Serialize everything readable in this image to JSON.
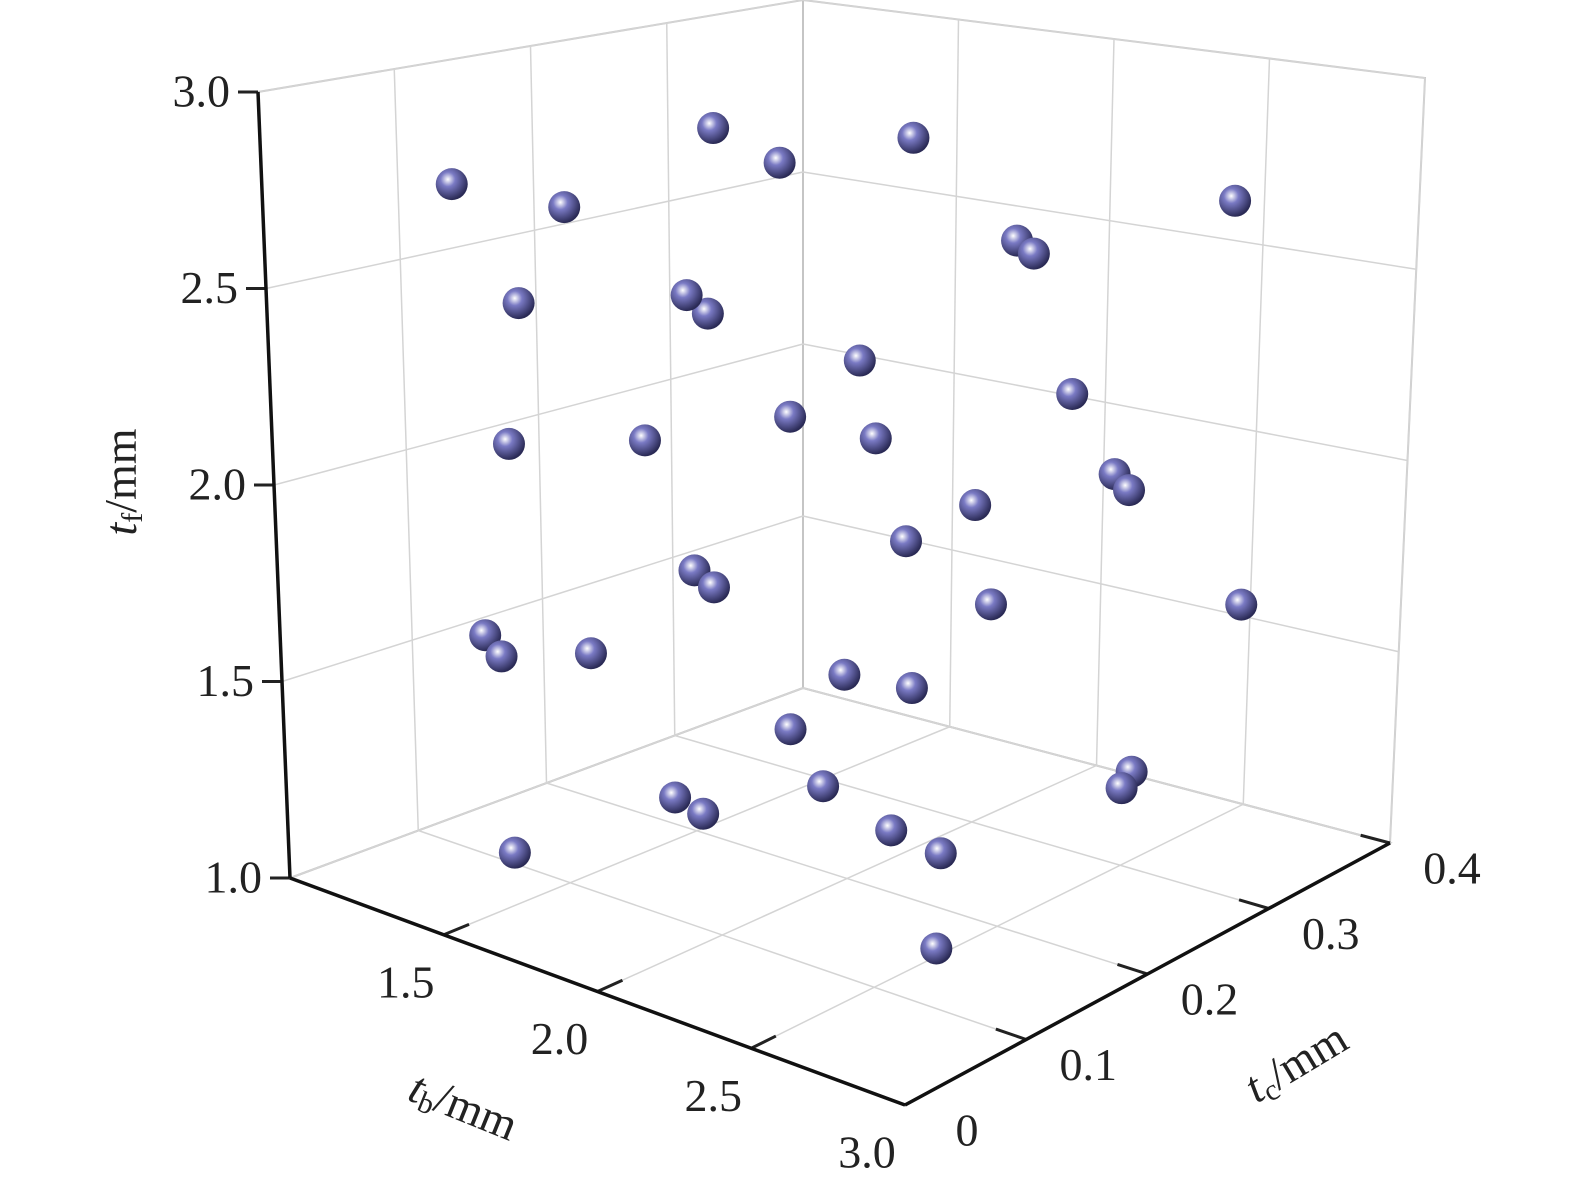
{
  "chart_data": {
    "type": "scatter3d",
    "xlabel": {
      "symbol": "t",
      "subscript": "b",
      "unit": "/mm"
    },
    "ylabel": {
      "symbol": "t",
      "subscript": "c",
      "unit": "/mm"
    },
    "zlabel": {
      "symbol": "t",
      "subscript": "f",
      "unit": "/mm"
    },
    "xlim": [
      1,
      3
    ],
    "xticks": [
      1.5,
      {
        "value": 2,
        "label": "2.0"
      },
      2.5,
      {
        "value": 3,
        "label": "3.0"
      }
    ],
    "ylim": [
      0,
      0.4
    ],
    "yticks": [
      0,
      0.1,
      0.2,
      0.3,
      0.4
    ],
    "zlim": [
      1,
      3
    ],
    "zticks": [
      {
        "value": 1,
        "label": "1.0"
      },
      1.5,
      {
        "value": 2,
        "label": "2.0"
      },
      2.5,
      {
        "value": 3,
        "label": "3.0"
      }
    ],
    "grid": true,
    "color": "#7a7ac4",
    "x": [
      1.38,
      1.52,
      1.78,
      1.57,
      2.2,
      2.61,
      2.12,
      2.38,
      1.55,
      1.9,
      1.58,
      1.39,
      2.24,
      2.1,
      1.88,
      1.33,
      1.97,
      2.45,
      1.56,
      2.9,
      2.61,
      1.5,
      1.98,
      2.26,
      2.47,
      1.45,
      1.29,
      1.37,
      1.57,
      2.21,
      1.39,
      2.53,
      2.7,
      1.92,
      1.64,
      1.94,
      2.35,
      2.31,
      1.53,
      2.9
    ],
    "y": [
      0.05,
      0.1,
      0.15,
      0.25,
      0.2,
      0.35,
      0.3,
      0.25,
      0.2,
      0.1,
      0.05,
      0.3,
      0.15,
      0.35,
      0.25,
      0.1,
      0.05,
      0.3,
      0.35,
      0.2,
      0.15,
      0.2,
      0.1,
      0.25,
      0.4,
      0.05,
      0.1,
      0.15,
      0.3,
      0.2,
      0.3,
      0.3,
      0.25,
      0.2,
      0.15,
      0.1,
      0.15,
      0.2,
      0.05,
      0.05
    ],
    "z": [
      2.81,
      2.74,
      2.95,
      2.74,
      2.95,
      2.69,
      2.57,
      2.63,
      2.38,
      2.59,
      2.55,
      1.97,
      2.44,
      2.1,
      2.06,
      2.09,
      2.29,
      2.01,
      1.6,
      2.18,
      2.15,
      1.69,
      1.87,
      1.7,
      1.53,
      1.68,
      1.53,
      1.5,
      1.3,
      1.54,
      1.11,
      1.25,
      1.32,
      1.22,
      1.19,
      1.29,
      1.28,
      1.14,
      1.15,
      1.27
    ]
  }
}
